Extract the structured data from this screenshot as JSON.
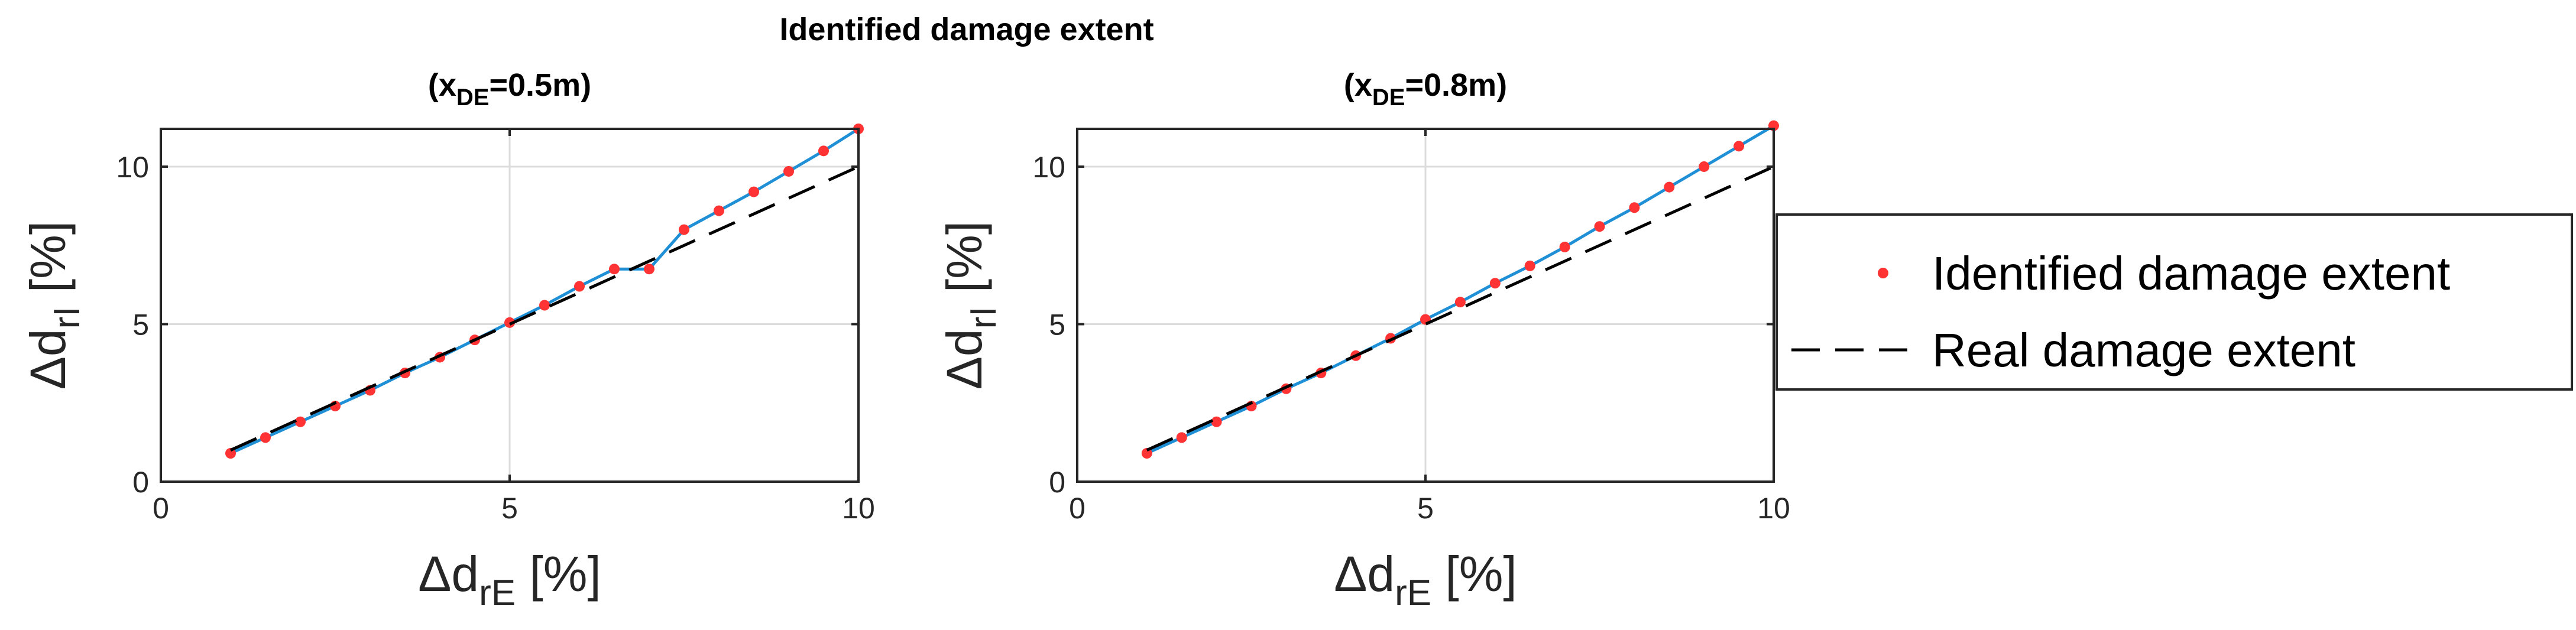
{
  "figure": {
    "suptitle": "Identified damage extent"
  },
  "legend": {
    "placement": "right",
    "entries": [
      {
        "label": "Identified damage extent",
        "marker": "red-dot"
      },
      {
        "label": "Real damage extent",
        "marker": "black-dashed-line"
      }
    ]
  },
  "colors": {
    "identified_marker": "#ff3333",
    "identified_line": "#1f8fd6",
    "real_line": "#000000",
    "grid": "#dcdcdc",
    "axes": "#262626"
  },
  "chart_data": [
    {
      "type": "line",
      "title_main": "(x",
      "title_sub": "DE",
      "title_tail": "=0.5m)",
      "xlabel_main": "Δd",
      "xlabel_sub": "rE",
      "xlabel_tail": " [%]",
      "ylabel_main": "Δd",
      "ylabel_sub": "rI",
      "ylabel_tail": " [%]",
      "xlim": [
        0,
        10
      ],
      "ylim": [
        0,
        11.2
      ],
      "xticks": [
        0,
        5,
        10
      ],
      "yticks": [
        0,
        5,
        10
      ],
      "grid": true,
      "series": [
        {
          "name": "Identified damage extent",
          "style": "red-dots-joined-by-blue-line",
          "x": [
            1,
            1.5,
            2,
            2.5,
            3,
            3.5,
            4,
            4.5,
            5,
            5.5,
            6,
            6.5,
            7,
            7.5,
            8,
            8.5,
            9,
            9.5,
            10
          ],
          "y": [
            0.9,
            1.4,
            1.9,
            2.4,
            2.9,
            3.45,
            3.95,
            4.5,
            5.05,
            5.6,
            6.2,
            6.75,
            6.75,
            8.0,
            8.6,
            9.2,
            9.85,
            10.5,
            11.2
          ]
        },
        {
          "name": "Real damage extent",
          "style": "black-dashed",
          "x": [
            1,
            10
          ],
          "y": [
            1,
            10
          ]
        }
      ]
    },
    {
      "type": "line",
      "title_main": "(x",
      "title_sub": "DE",
      "title_tail": "=0.8m)",
      "xlabel_main": "Δd",
      "xlabel_sub": "rE",
      "xlabel_tail": " [%]",
      "ylabel_main": "Δd",
      "ylabel_sub": "rI",
      "ylabel_tail": " [%]",
      "xlim": [
        0,
        10
      ],
      "ylim": [
        0,
        11.2
      ],
      "xticks": [
        0,
        5,
        10
      ],
      "yticks": [
        0,
        5,
        10
      ],
      "grid": true,
      "series": [
        {
          "name": "Identified damage extent",
          "style": "red-dots-joined-by-blue-line",
          "x": [
            1,
            1.5,
            2,
            2.5,
            3,
            3.5,
            4,
            4.5,
            5,
            5.5,
            6,
            6.5,
            7,
            7.5,
            8,
            8.5,
            9,
            9.5,
            10
          ],
          "y": [
            0.9,
            1.4,
            1.9,
            2.4,
            2.95,
            3.45,
            4.0,
            4.55,
            5.15,
            5.7,
            6.3,
            6.85,
            7.45,
            8.1,
            8.7,
            9.35,
            10.0,
            10.65,
            11.3
          ]
        },
        {
          "name": "Real damage extent",
          "style": "black-dashed",
          "x": [
            1,
            10
          ],
          "y": [
            1,
            10
          ]
        }
      ]
    }
  ]
}
